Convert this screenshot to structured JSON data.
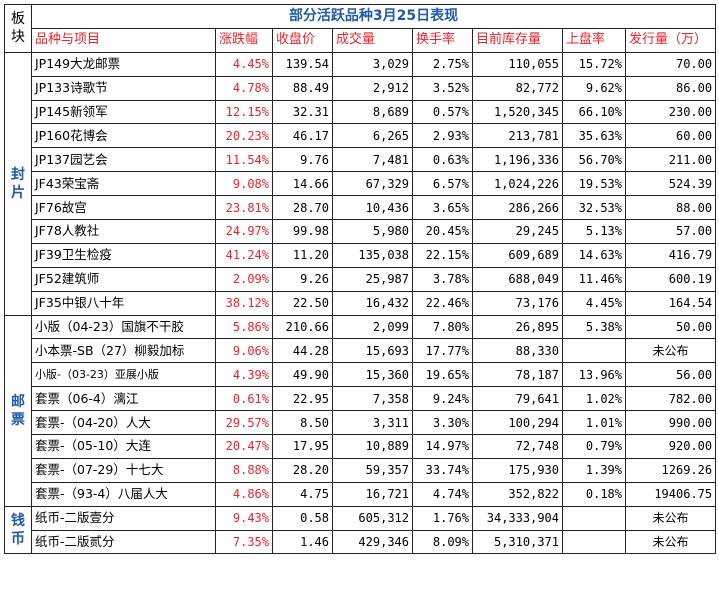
{
  "sheet": {
    "title": "部分活跃品种3月25日表现",
    "corner_label": "板块",
    "headers": [
      "品种与项目",
      "涨跌幅",
      "收盘价",
      "成交量",
      "换手率",
      "目前库存量",
      "上盘率",
      "发行量（万）"
    ],
    "groups": [
      {
        "label": "封片",
        "rows": [
          [
            "JP149大龙邮票",
            "4.45%",
            "139.54",
            "3,029",
            "2.75%",
            "110,055",
            "15.72%",
            "70.00"
          ],
          [
            "JP133诗歌节",
            "4.78%",
            "88.49",
            "2,912",
            "3.52%",
            "82,772",
            "9.62%",
            "86.00"
          ],
          [
            "JP145新领军",
            "12.15%",
            "32.31",
            "8,689",
            "0.57%",
            "1,520,345",
            "66.10%",
            "230.00"
          ],
          [
            "JP160花博会",
            "20.23%",
            "46.17",
            "6,265",
            "2.93%",
            "213,781",
            "35.63%",
            "60.00"
          ],
          [
            "JP137园艺会",
            "11.54%",
            "9.76",
            "7,481",
            "0.63%",
            "1,196,336",
            "56.70%",
            "211.00"
          ],
          [
            "JF43荣宝斋",
            "9.08%",
            "14.66",
            "67,329",
            "6.57%",
            "1,024,226",
            "19.53%",
            "524.39"
          ],
          [
            "JF76故宫",
            "23.81%",
            "28.70",
            "10,436",
            "3.65%",
            "286,266",
            "32.53%",
            "88.00"
          ],
          [
            "JF78人教社",
            "24.97%",
            "99.98",
            "5,980",
            "20.45%",
            "29,245",
            "5.13%",
            "57.00"
          ],
          [
            "JF39卫生检疫",
            "41.24%",
            "11.20",
            "135,038",
            "22.15%",
            "609,689",
            "14.63%",
            "416.79"
          ],
          [
            "JF52建筑师",
            "2.09%",
            "9.26",
            "25,987",
            "3.78%",
            "688,049",
            "11.46%",
            "600.19"
          ],
          [
            "JF35中银八十年",
            "38.12%",
            "22.50",
            "16,432",
            "22.46%",
            "73,176",
            "4.45%",
            "164.54"
          ]
        ]
      },
      {
        "label": "邮票",
        "rows": [
          [
            "小版（04-23）国旗不干胶",
            "5.86%",
            "210.66",
            "2,099",
            "7.80%",
            "26,895",
            "5.38%",
            "50.00"
          ],
          [
            "小本票-SB（27）柳毅加标",
            "9.06%",
            "44.28",
            "15,693",
            "17.77%",
            "88,330",
            "",
            "未公布"
          ],
          [
            "小版-（03-23）亚展小版",
            "4.39%",
            "49.90",
            "15,360",
            "19.65%",
            "78,187",
            "13.96%",
            "56.00"
          ],
          [
            "套票（06-4）漓江",
            "0.61%",
            "22.95",
            "7,358",
            "9.24%",
            "79,641",
            "1.02%",
            "782.00"
          ],
          [
            "套票-（04-20）人大",
            "29.57%",
            "8.50",
            "3,311",
            "3.30%",
            "100,294",
            "1.01%",
            "990.00"
          ],
          [
            "套票-（05-10）大连",
            "20.47%",
            "17.95",
            "10,889",
            "14.97%",
            "72,748",
            "0.79%",
            "920.00"
          ],
          [
            "套票-（07-29）十七大",
            "8.88%",
            "28.20",
            "59,357",
            "33.74%",
            "175,930",
            "1.39%",
            "1269.26"
          ],
          [
            "套票-（93-4）八届人大",
            "4.86%",
            "4.75",
            "16,721",
            "4.74%",
            "352,822",
            "0.18%",
            "19406.75"
          ]
        ]
      },
      {
        "label": "钱币",
        "rows": [
          [
            "纸币-二版壹分",
            "9.43%",
            "0.58",
            "605,312",
            "1.76%",
            "34,333,904",
            "",
            "未公布"
          ],
          [
            "纸币-二版贰分",
            "7.35%",
            "1.46",
            "429,346",
            "8.09%",
            "5,310,371",
            "",
            "未公布"
          ]
        ]
      }
    ]
  }
}
